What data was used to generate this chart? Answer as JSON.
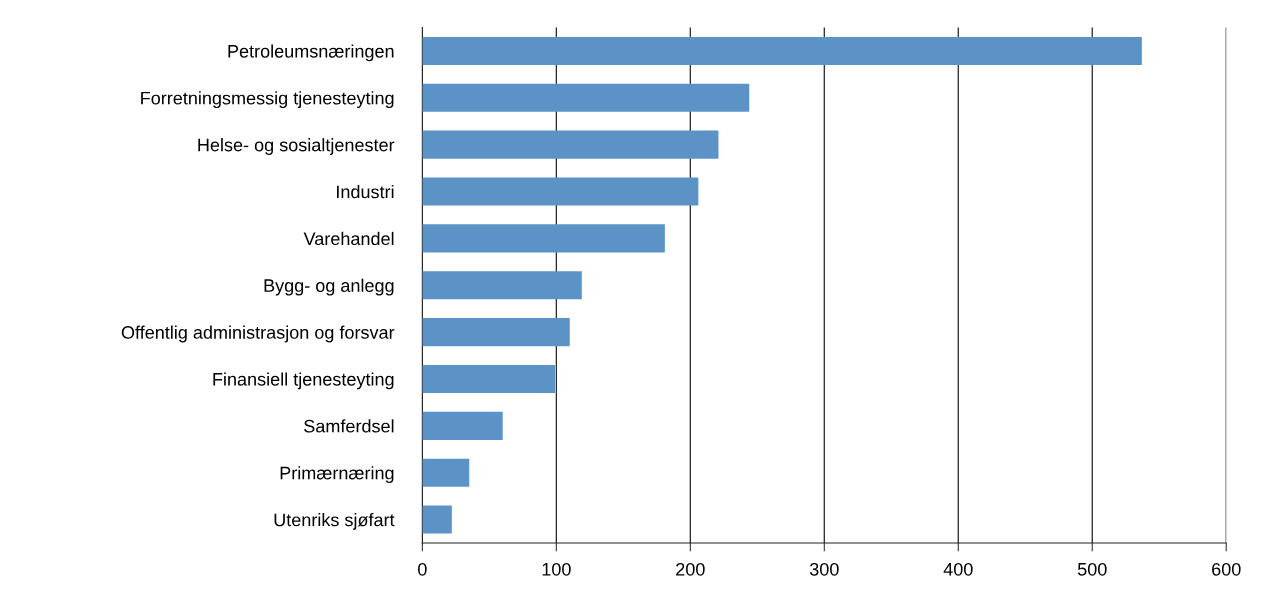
{
  "chart_data": {
    "type": "bar",
    "orientation": "horizontal",
    "categories": [
      "Petroleumsnæringen",
      "Forretningsmessig tjenesteyting",
      "Helse- og sosialtjenester",
      "Industri",
      "Varehandel",
      "Bygg- og anlegg",
      "Offentlig administrasjon og forsvar",
      "Finansiell tjenesteyting",
      "Samferdsel",
      "Primærnæring",
      "Utenriks sjøfart"
    ],
    "values": [
      537,
      244,
      221,
      206,
      181,
      119,
      110,
      99,
      60,
      35,
      22
    ],
    "color": "#5b93c7",
    "xlim": [
      0,
      600
    ],
    "xticks": [
      0,
      100,
      200,
      300,
      400,
      500,
      600
    ],
    "grid": "x",
    "legend": false
  }
}
